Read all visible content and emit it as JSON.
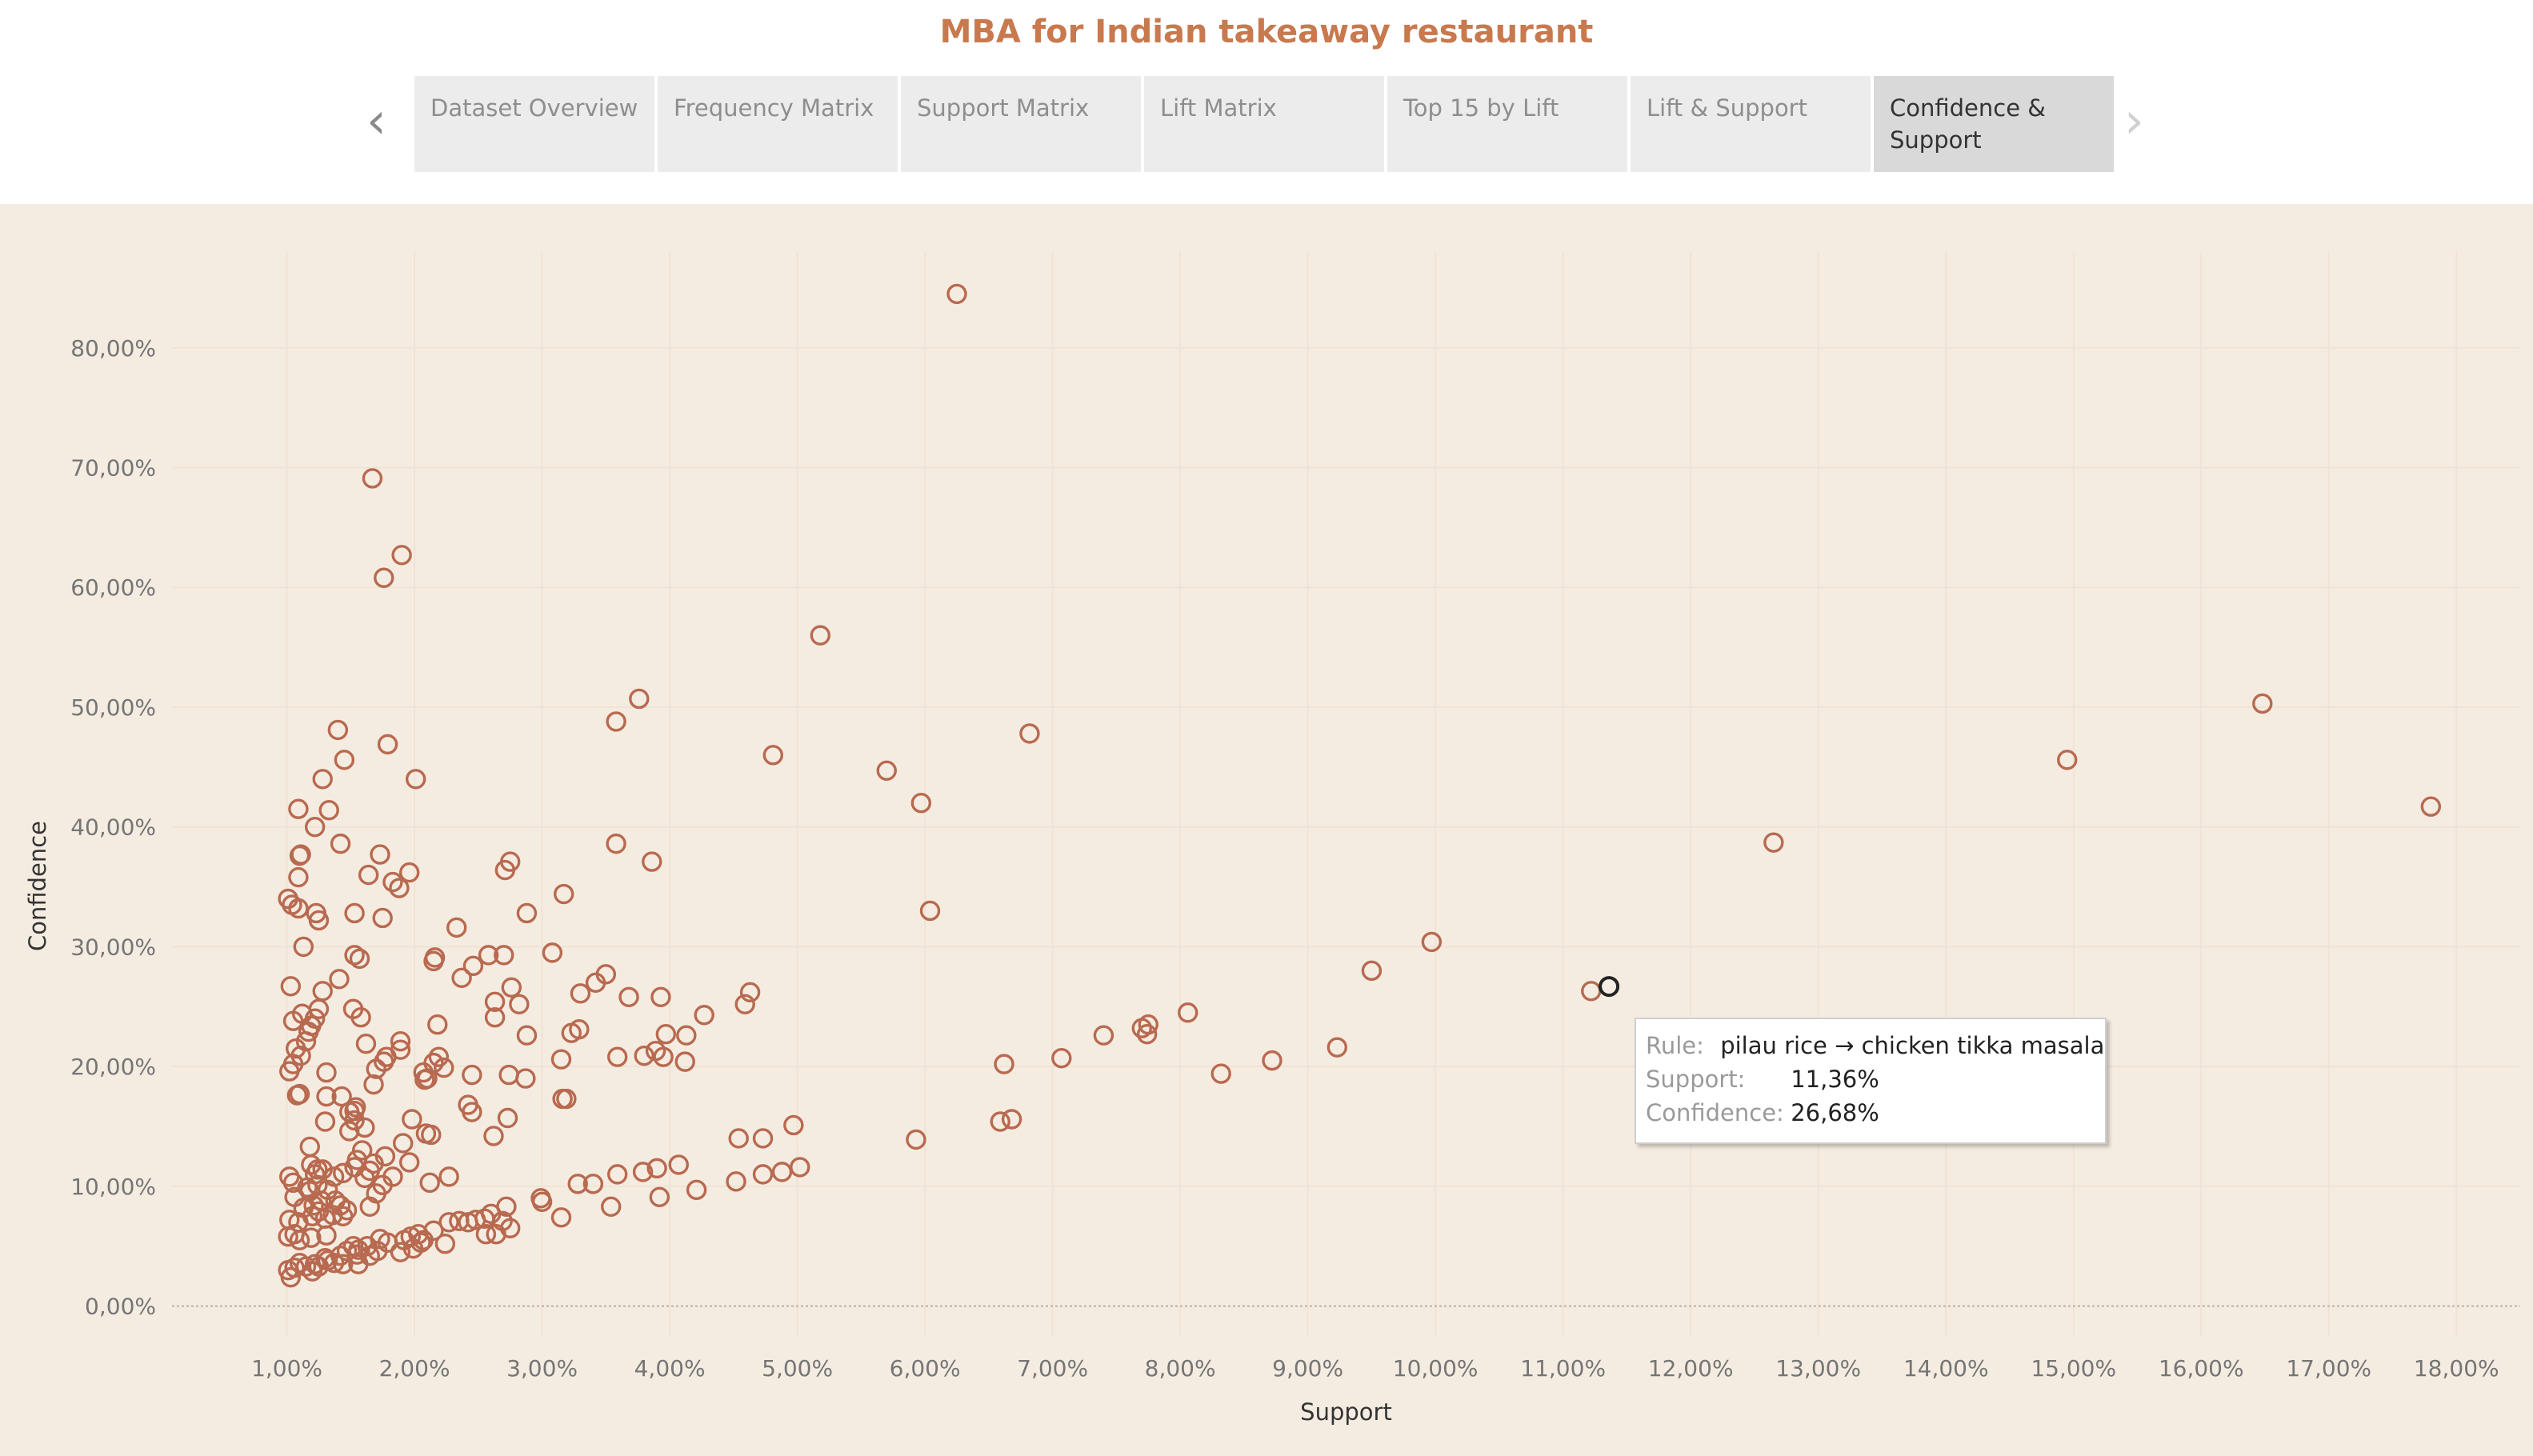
{
  "title": "MBA for Indian takeaway restaurant",
  "nav": {
    "prev_icon": "chevron-left",
    "next_icon": "chevron-right"
  },
  "tabs": [
    {
      "label": "Dataset Overview",
      "active": false
    },
    {
      "label": "Frequency Matrix",
      "active": false
    },
    {
      "label": "Support Matrix",
      "active": false
    },
    {
      "label": "Lift Matrix",
      "active": false
    },
    {
      "label": "Top 15 by Lift",
      "active": false
    },
    {
      "label": "Lift & Support",
      "active": false
    },
    {
      "label": "Confidence & Support",
      "active": true
    }
  ],
  "colors": {
    "title": "#c8794e",
    "marker": "#b86a50",
    "highlight_marker": "#222222",
    "chart_background": "#f5ece1",
    "grid": "#efe3d5"
  },
  "tooltip": {
    "rule_key": "Rule:",
    "rule_value": "pilau rice → chicken tikka masala",
    "support_key": "Support:",
    "support_value": "11,36%",
    "confidence_key": "Confidence:",
    "confidence_value": "26,68%"
  },
  "chart_data": {
    "type": "scatter",
    "title": "",
    "xlabel": "Support",
    "ylabel": "Confidence",
    "xlim": [
      0.1,
      18.5
    ],
    "ylim": [
      -2.5,
      88
    ],
    "x_ticks": [
      1,
      2,
      3,
      4,
      5,
      6,
      7,
      8,
      9,
      10,
      11,
      12,
      13,
      14,
      15,
      16,
      17,
      18
    ],
    "x_tick_labels": [
      "1,00%",
      "2,00%",
      "3,00%",
      "4,00%",
      "5,00%",
      "6,00%",
      "7,00%",
      "8,00%",
      "9,00%",
      "10,00%",
      "11,00%",
      "12,00%",
      "13,00%",
      "14,00%",
      "15,00%",
      "16,00%",
      "17,00%",
      "18,00%"
    ],
    "y_ticks": [
      0,
      10,
      20,
      30,
      40,
      50,
      60,
      70,
      80
    ],
    "y_tick_labels": [
      "0,00%",
      "10,00%",
      "20,00%",
      "30,00%",
      "40,00%",
      "50,00%",
      "60,00%",
      "70,00%",
      "80,00%"
    ],
    "grid": true,
    "legend": "none",
    "highlighted_point": [
      11.36,
      26.68
    ],
    "points": [
      [
        6.25,
        84.5
      ],
      [
        1.67,
        69.1
      ],
      [
        1.9,
        62.7
      ],
      [
        1.76,
        60.8
      ],
      [
        5.18,
        56.0
      ],
      [
        16.48,
        50.3
      ],
      [
        3.76,
        50.7
      ],
      [
        3.58,
        48.8
      ],
      [
        1.4,
        48.1
      ],
      [
        6.82,
        47.8
      ],
      [
        1.79,
        46.9
      ],
      [
        4.81,
        46.0
      ],
      [
        1.45,
        45.6
      ],
      [
        14.95,
        45.6
      ],
      [
        5.7,
        44.7
      ],
      [
        1.28,
        44.0
      ],
      [
        2.01,
        44.0
      ],
      [
        5.97,
        42.0
      ],
      [
        17.8,
        41.7
      ],
      [
        1.09,
        41.5
      ],
      [
        1.33,
        41.4
      ],
      [
        1.22,
        40.0
      ],
      [
        12.65,
        38.7
      ],
      [
        1.42,
        38.6
      ],
      [
        3.58,
        38.6
      ],
      [
        1.11,
        37.7
      ],
      [
        1.1,
        37.6
      ],
      [
        1.73,
        37.7
      ],
      [
        2.75,
        37.1
      ],
      [
        3.86,
        37.1
      ],
      [
        2.71,
        36.4
      ],
      [
        1.96,
        36.2
      ],
      [
        1.64,
        36.0
      ],
      [
        1.09,
        35.8
      ],
      [
        1.83,
        35.4
      ],
      [
        1.88,
        34.9
      ],
      [
        3.17,
        34.4
      ],
      [
        1.01,
        34.0
      ],
      [
        1.04,
        33.5
      ],
      [
        1.09,
        33.2
      ],
      [
        1.53,
        32.8
      ],
      [
        1.23,
        32.8
      ],
      [
        2.88,
        32.8
      ],
      [
        6.04,
        33.0
      ],
      [
        1.25,
        32.2
      ],
      [
        1.75,
        32.4
      ],
      [
        2.33,
        31.6
      ],
      [
        1.13,
        30.0
      ],
      [
        9.97,
        30.4
      ],
      [
        3.08,
        29.5
      ],
      [
        2.7,
        29.3
      ],
      [
        2.58,
        29.3
      ],
      [
        1.53,
        29.3
      ],
      [
        2.15,
        28.8
      ],
      [
        2.16,
        29.1
      ],
      [
        1.57,
        29.0
      ],
      [
        2.46,
        28.4
      ],
      [
        9.5,
        28.0
      ],
      [
        3.5,
        27.7
      ],
      [
        2.37,
        27.4
      ],
      [
        1.41,
        27.3
      ],
      [
        3.42,
        27.0
      ],
      [
        2.76,
        26.6
      ],
      [
        1.28,
        26.3
      ],
      [
        3.3,
        26.1
      ],
      [
        4.63,
        26.2
      ],
      [
        1.03,
        26.7
      ],
      [
        3.93,
        25.8
      ],
      [
        2.82,
        25.2
      ],
      [
        2.63,
        25.4
      ],
      [
        3.68,
        25.8
      ],
      [
        1.52,
        24.8
      ],
      [
        4.59,
        25.2
      ],
      [
        8.06,
        24.5
      ],
      [
        11.22,
        26.3
      ],
      [
        11.36,
        26.68
      ],
      [
        1.25,
        24.8
      ],
      [
        1.12,
        24.4
      ],
      [
        4.27,
        24.3
      ],
      [
        1.22,
        24.0
      ],
      [
        1.58,
        24.1
      ],
      [
        2.63,
        24.1
      ],
      [
        1.05,
        23.8
      ],
      [
        7.75,
        23.5
      ],
      [
        7.7,
        23.2
      ],
      [
        1.17,
        22.9
      ],
      [
        1.19,
        23.4
      ],
      [
        2.18,
        23.5
      ],
      [
        3.29,
        23.1
      ],
      [
        3.23,
        22.8
      ],
      [
        3.97,
        22.7
      ],
      [
        4.13,
        22.6
      ],
      [
        7.4,
        22.6
      ],
      [
        7.74,
        22.7
      ],
      [
        2.88,
        22.6
      ],
      [
        1.15,
        22.1
      ],
      [
        1.89,
        22.1
      ],
      [
        1.62,
        21.9
      ],
      [
        1.89,
        21.4
      ],
      [
        3.89,
        21.3
      ],
      [
        1.07,
        21.5
      ],
      [
        9.23,
        21.6
      ],
      [
        1.11,
        20.9
      ],
      [
        1.78,
        20.8
      ],
      [
        3.95,
        20.8
      ],
      [
        3.59,
        20.8
      ],
      [
        4.12,
        20.4
      ],
      [
        3.8,
        20.9
      ],
      [
        3.15,
        20.6
      ],
      [
        7.07,
        20.7
      ],
      [
        1.76,
        20.4
      ],
      [
        2.19,
        20.8
      ],
      [
        2.15,
        20.3
      ],
      [
        1.7,
        19.8
      ],
      [
        2.23,
        19.9
      ],
      [
        8.72,
        20.5
      ],
      [
        6.62,
        20.2
      ],
      [
        1.05,
        20.2
      ],
      [
        1.02,
        19.6
      ],
      [
        1.31,
        19.5
      ],
      [
        2.07,
        19.5
      ],
      [
        2.1,
        19.0
      ],
      [
        2.74,
        19.3
      ],
      [
        2.87,
        19.0
      ],
      [
        8.32,
        19.4
      ],
      [
        2.45,
        19.3
      ],
      [
        2.08,
        18.9
      ],
      [
        1.68,
        18.5
      ],
      [
        1.1,
        17.7
      ],
      [
        1.08,
        17.6
      ],
      [
        1.31,
        17.5
      ],
      [
        1.43,
        17.5
      ],
      [
        3.19,
        17.3
      ],
      [
        3.16,
        17.3
      ],
      [
        2.42,
        16.8
      ],
      [
        1.53,
        16.3
      ],
      [
        1.54,
        16.6
      ],
      [
        2.45,
        16.2
      ],
      [
        1.49,
        16.2
      ],
      [
        1.3,
        15.4
      ],
      [
        1.53,
        15.5
      ],
      [
        1.98,
        15.6
      ],
      [
        2.73,
        15.7
      ],
      [
        6.59,
        15.4
      ],
      [
        6.68,
        15.6
      ],
      [
        4.97,
        15.1
      ],
      [
        1.61,
        14.9
      ],
      [
        1.49,
        14.6
      ],
      [
        2.09,
        14.4
      ],
      [
        2.62,
        14.2
      ],
      [
        5.93,
        13.9
      ],
      [
        4.54,
        14.0
      ],
      [
        4.73,
        14.0
      ],
      [
        1.91,
        13.6
      ],
      [
        1.18,
        13.3
      ],
      [
        1.59,
        13.0
      ],
      [
        2.13,
        14.3
      ],
      [
        1.77,
        12.5
      ],
      [
        1.55,
        12.2
      ],
      [
        1.68,
        11.9
      ],
      [
        1.53,
        11.6
      ],
      [
        1.96,
        12.0
      ],
      [
        1.19,
        11.8
      ],
      [
        1.24,
        11.4
      ],
      [
        1.22,
        11.0
      ],
      [
        1.44,
        11.1
      ],
      [
        1.28,
        11.4
      ],
      [
        1.65,
        11.3
      ],
      [
        1.61,
        10.7
      ],
      [
        1.37,
        10.8
      ],
      [
        1.02,
        10.8
      ],
      [
        1.83,
        10.8
      ],
      [
        2.27,
        10.8
      ],
      [
        4.88,
        11.2
      ],
      [
        5.02,
        11.6
      ],
      [
        4.73,
        11.0
      ],
      [
        4.52,
        10.4
      ],
      [
        4.07,
        11.8
      ],
      [
        3.9,
        11.5
      ],
      [
        3.79,
        11.2
      ],
      [
        3.59,
        11.0
      ],
      [
        3.4,
        10.2
      ],
      [
        3.28,
        10.2
      ],
      [
        4.21,
        9.7
      ],
      [
        3.92,
        9.1
      ],
      [
        2.99,
        9.0
      ],
      [
        3.0,
        8.7
      ],
      [
        1.24,
        10.1
      ],
      [
        1.05,
        10.3
      ],
      [
        1.16,
        9.9
      ],
      [
        1.18,
        9.6
      ],
      [
        1.32,
        9.7
      ],
      [
        1.7,
        9.4
      ],
      [
        1.75,
        10.1
      ],
      [
        2.12,
        10.3
      ],
      [
        1.06,
        9.1
      ],
      [
        1.27,
        8.8
      ],
      [
        1.42,
        8.4
      ],
      [
        1.65,
        8.3
      ],
      [
        1.38,
        8.8
      ],
      [
        1.21,
        8.4
      ],
      [
        2.72,
        8.3
      ],
      [
        3.54,
        8.3
      ],
      [
        3.15,
        7.4
      ],
      [
        1.13,
        8.2
      ],
      [
        1.47,
        8.0
      ],
      [
        1.25,
        7.9
      ],
      [
        1.36,
        7.6
      ],
      [
        1.44,
        7.5
      ],
      [
        1.02,
        7.2
      ],
      [
        1.3,
        7.3
      ],
      [
        1.09,
        7.0
      ],
      [
        1.2,
        7.5
      ],
      [
        2.27,
        7.0
      ],
      [
        2.35,
        7.1
      ],
      [
        2.42,
        7.0
      ],
      [
        2.48,
        7.2
      ],
      [
        2.69,
        7.1
      ],
      [
        2.6,
        7.7
      ],
      [
        2.55,
        7.3
      ],
      [
        2.75,
        6.5
      ],
      [
        2.56,
        6.0
      ],
      [
        2.64,
        6.0
      ],
      [
        2.15,
        6.3
      ],
      [
        2.03,
        6.0
      ],
      [
        2.07,
        5.5
      ],
      [
        1.92,
        5.5
      ],
      [
        1.97,
        5.8
      ],
      [
        2.05,
        5.3
      ],
      [
        1.79,
        5.3
      ],
      [
        1.73,
        5.6
      ],
      [
        1.63,
        5.0
      ],
      [
        1.52,
        5.0
      ],
      [
        1.31,
        5.9
      ],
      [
        1.19,
        5.7
      ],
      [
        1.06,
        6.0
      ],
      [
        1.01,
        5.8
      ],
      [
        1.1,
        5.5
      ],
      [
        2.24,
        5.2
      ],
      [
        1.99,
        4.8
      ],
      [
        1.89,
        4.5
      ],
      [
        1.71,
        4.6
      ],
      [
        1.56,
        4.7
      ],
      [
        1.47,
        4.6
      ],
      [
        1.42,
        4.2
      ],
      [
        1.55,
        4.3
      ],
      [
        1.3,
        4.0
      ],
      [
        1.32,
        3.8
      ],
      [
        1.37,
        3.6
      ],
      [
        1.22,
        3.5
      ],
      [
        1.15,
        3.3
      ],
      [
        1.06,
        3.2
      ],
      [
        1.01,
        3.0
      ],
      [
        1.1,
        3.6
      ],
      [
        1.44,
        3.5
      ],
      [
        1.56,
        3.5
      ],
      [
        1.2,
        2.9
      ],
      [
        1.25,
        3.3
      ],
      [
        1.65,
        4.2
      ],
      [
        1.03,
        2.4
      ]
    ]
  }
}
